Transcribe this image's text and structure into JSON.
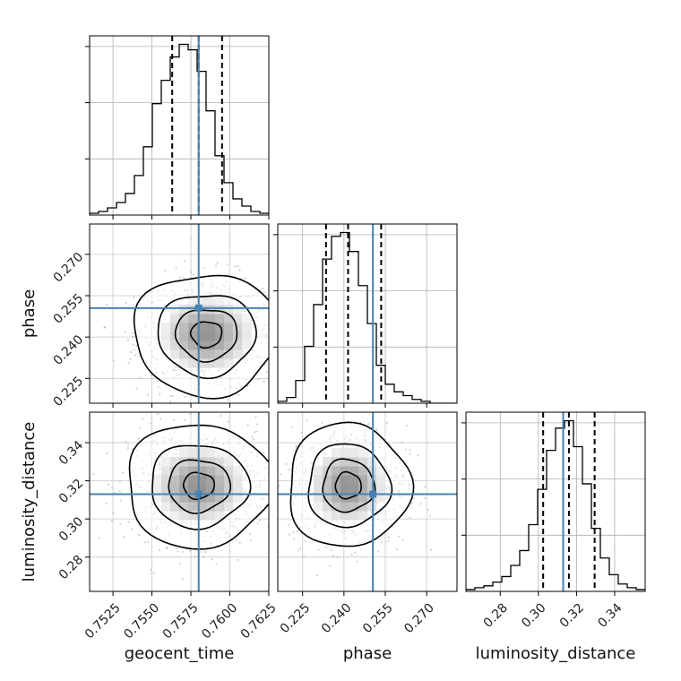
{
  "chart_data": {
    "type": "corner",
    "parameters": [
      {
        "name": "geocent_time",
        "range": [
          0.751,
          0.7625
        ],
        "ticks": [
          "0.7525",
          "0.7550",
          "0.7575",
          "0.7600",
          "0.7625"
        ],
        "tick_values": [
          0.7525,
          0.755,
          0.7575,
          0.76,
          0.7625
        ],
        "truth": 0.758,
        "quantiles": [
          0.7563,
          0.758,
          0.7595
        ],
        "histogram": {
          "edges_start": 0.751,
          "bin_width": 0.000575,
          "counts": [
            1,
            2,
            4,
            7,
            12,
            22,
            38,
            62,
            75,
            88,
            95,
            92,
            80,
            58,
            33,
            18,
            9,
            5,
            2,
            1
          ]
        }
      },
      {
        "name": "phase",
        "range": [
          0.216,
          0.281
        ],
        "ticks": [
          "0.225",
          "0.240",
          "0.255",
          "0.270"
        ],
        "tick_values": [
          0.225,
          0.24,
          0.255,
          0.27
        ],
        "truth": 0.2505,
        "quantiles": [
          0.2335,
          0.2415,
          0.2535
        ],
        "histogram": {
          "edges_start": 0.216,
          "bin_width": 0.00325,
          "counts": [
            1,
            3,
            12,
            30,
            52,
            76,
            88,
            90,
            80,
            62,
            42,
            20,
            10,
            6,
            4,
            2,
            1,
            0,
            0,
            0
          ]
        }
      },
      {
        "name": "luminosity_distance",
        "range": [
          0.262,
          0.356
        ],
        "ticks": [
          "0.28",
          "0.30",
          "0.32",
          "0.34"
        ],
        "tick_values": [
          0.28,
          0.3,
          0.32,
          0.34
        ],
        "truth": 0.313,
        "quantiles": [
          0.3025,
          0.316,
          0.3295
        ],
        "histogram": {
          "edges_start": 0.262,
          "bin_width": 0.0047,
          "counts": [
            1,
            2,
            3,
            5,
            8,
            14,
            22,
            36,
            55,
            76,
            88,
            92,
            78,
            58,
            34,
            18,
            9,
            4,
            2,
            1
          ]
        }
      }
    ],
    "pairs": [
      {
        "x": "geocent_time",
        "y": "phase",
        "center": [
          0.7585,
          0.241
        ],
        "sigma": [
          0.0018,
          0.0085
        ]
      },
      {
        "x": "geocent_time",
        "y": "luminosity_distance",
        "center": [
          0.758,
          0.3175
        ],
        "sigma": [
          0.0018,
          0.0125
        ]
      },
      {
        "x": "phase",
        "y": "luminosity_distance",
        "center": [
          0.2415,
          0.3175
        ],
        "sigma": [
          0.0085,
          0.0125
        ]
      }
    ],
    "styles": {
      "truth_color": "#4682b4",
      "hist_color": "#000000",
      "quantile_color": "#000000",
      "grid": true
    }
  }
}
